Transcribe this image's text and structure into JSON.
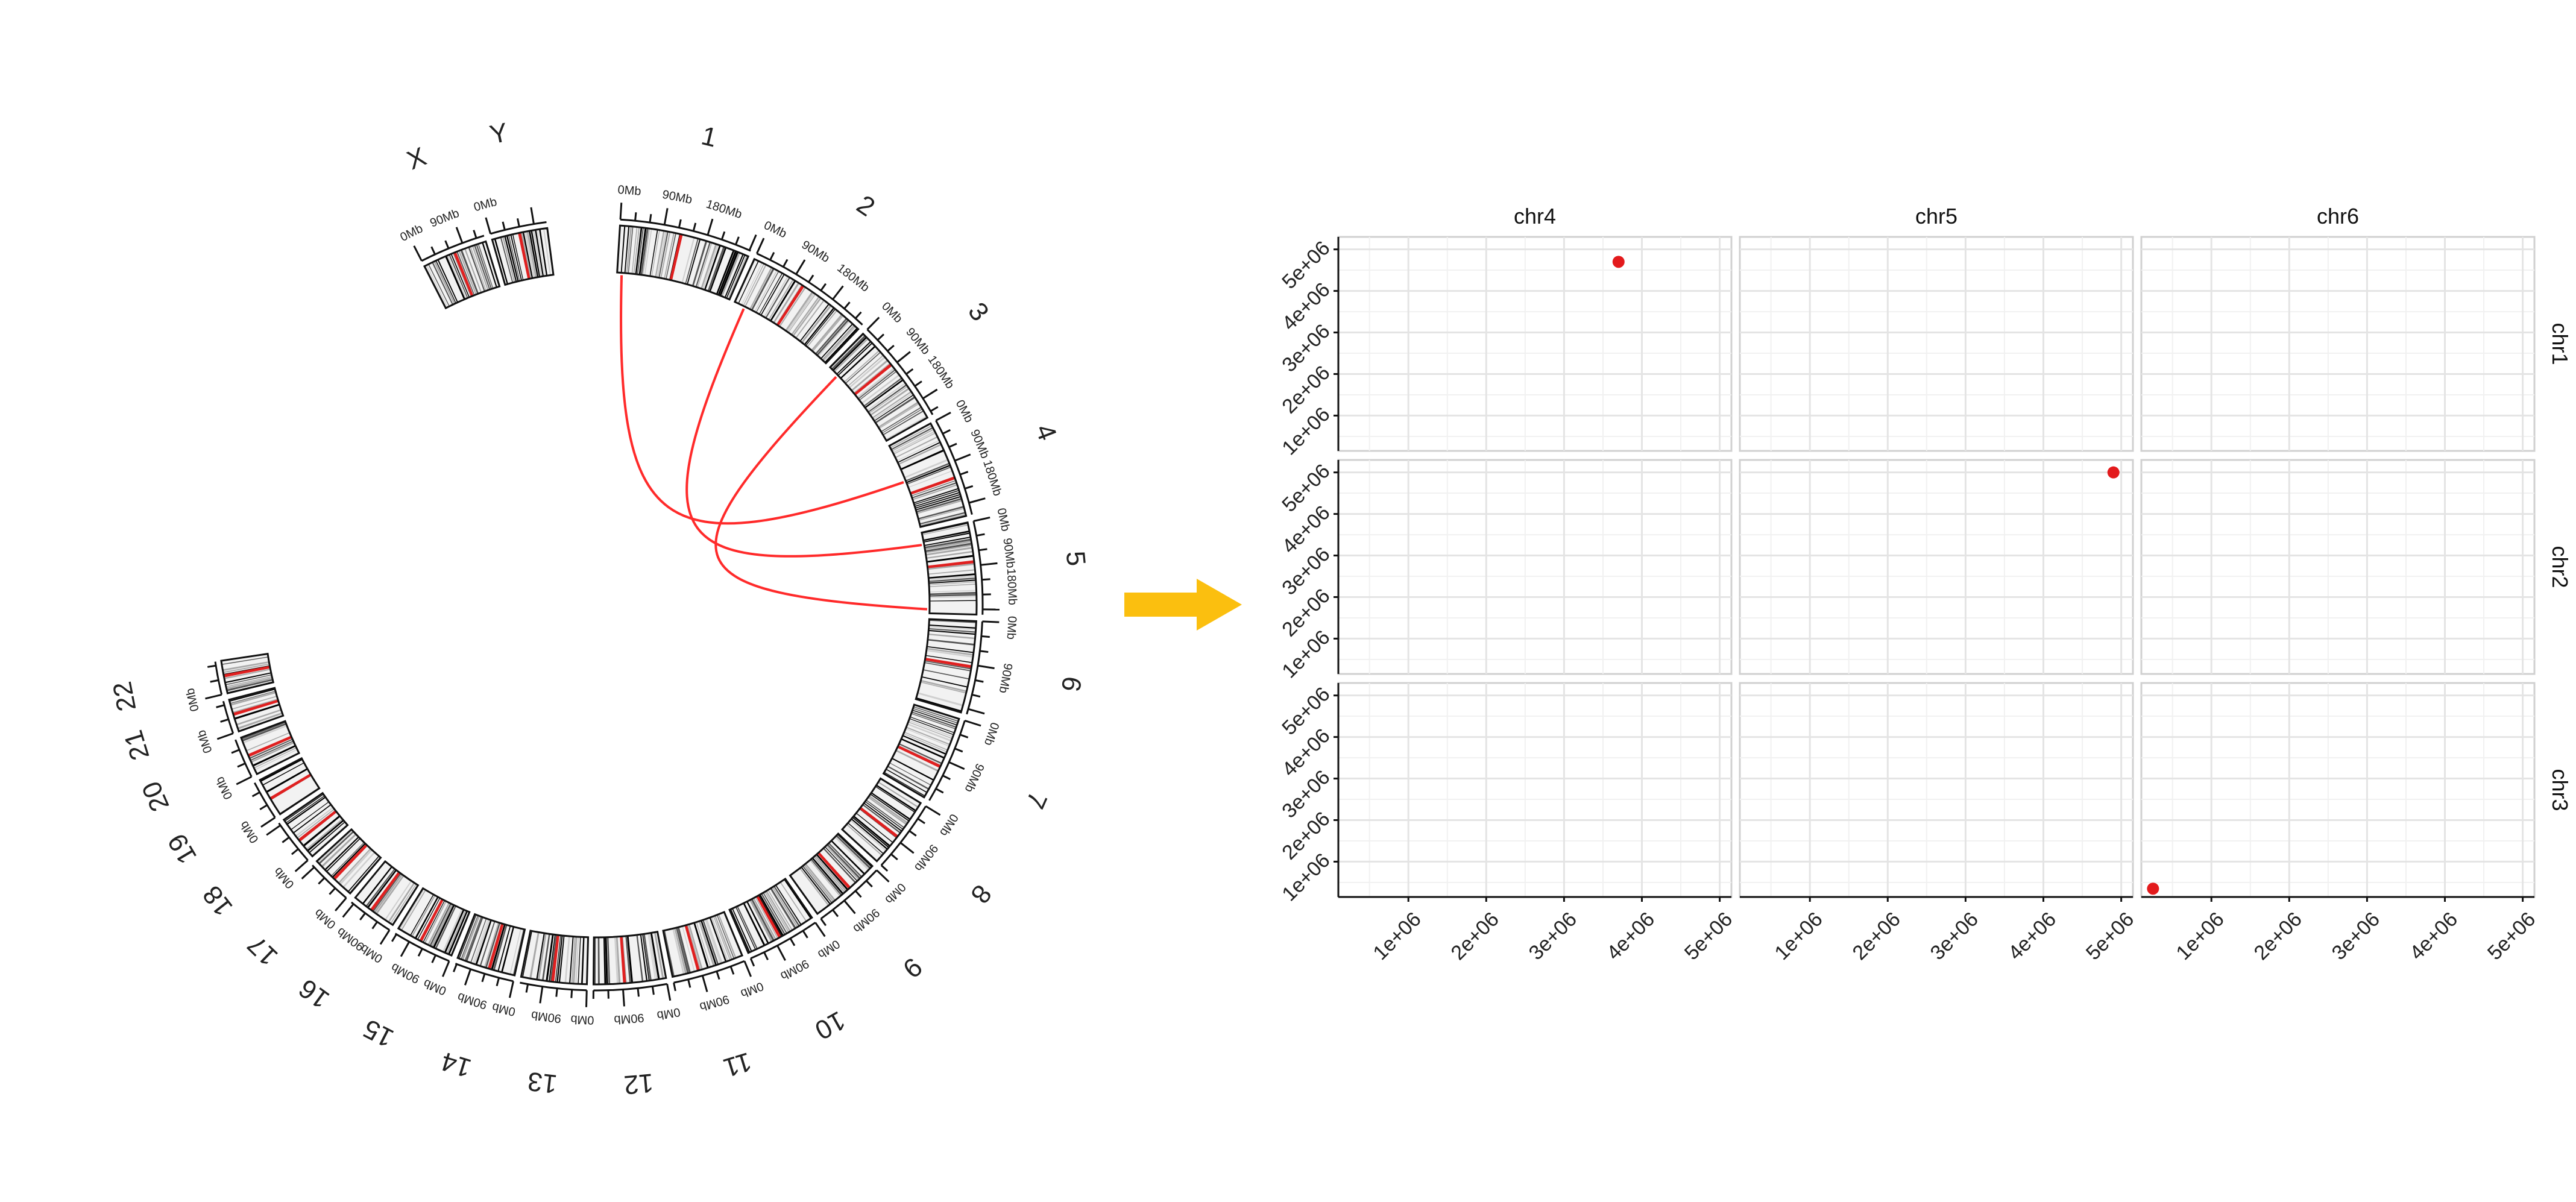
{
  "circos": {
    "chromosomes": [
      {
        "name": "1",
        "mb_labels": [
          "0Mb",
          "90Mb",
          "180Mb"
        ]
      },
      {
        "name": "2",
        "mb_labels": [
          "0Mb",
          "90Mb",
          "180Mb"
        ]
      },
      {
        "name": "3",
        "mb_labels": [
          "0Mb",
          "90Mb",
          "180Mb"
        ]
      },
      {
        "name": "4",
        "mb_labels": [
          "0Mb",
          "90Mb",
          "180Mb"
        ]
      },
      {
        "name": "5",
        "mb_labels": [
          "0Mb",
          "90Mb",
          "180Mb"
        ]
      },
      {
        "name": "6",
        "mb_labels": [
          "0Mb",
          "90Mb"
        ]
      },
      {
        "name": "7",
        "mb_labels": [
          "0Mb",
          "90Mb"
        ]
      },
      {
        "name": "8",
        "mb_labels": [
          "0Mb",
          "90Mb"
        ]
      },
      {
        "name": "9",
        "mb_labels": [
          "0Mb",
          "90Mb"
        ]
      },
      {
        "name": "10",
        "mb_labels": [
          "0Mb",
          "90Mb"
        ]
      },
      {
        "name": "11",
        "mb_labels": [
          "0Mb",
          "90Mb"
        ]
      },
      {
        "name": "12",
        "mb_labels": [
          "0Mb",
          "90Mb"
        ]
      },
      {
        "name": "13",
        "mb_labels": [
          "0Mb",
          "90Mb"
        ]
      },
      {
        "name": "14",
        "mb_labels": [
          "0Mb",
          "90Mb"
        ]
      },
      {
        "name": "15",
        "mb_labels": [
          "0Mb",
          "90Mb"
        ]
      },
      {
        "name": "16",
        "mb_labels": [
          "0Mb",
          "90Mb"
        ]
      },
      {
        "name": "17",
        "mb_labels": [
          "0Mb"
        ]
      },
      {
        "name": "18",
        "mb_labels": [
          "0Mb"
        ]
      },
      {
        "name": "19",
        "mb_labels": [
          "0Mb"
        ]
      },
      {
        "name": "20",
        "mb_labels": [
          "0Mb"
        ]
      },
      {
        "name": "21",
        "mb_labels": [
          "0Mb"
        ]
      },
      {
        "name": "22",
        "mb_labels": [
          "0Mb"
        ]
      },
      {
        "name": "X",
        "mb_labels": [
          "0Mb",
          "90Mb"
        ]
      },
      {
        "name": "Y",
        "mb_labels": [
          "0Mb"
        ]
      }
    ],
    "links": [
      {
        "from": "1",
        "from_frac": 0.04,
        "to": "4",
        "to_frac": 0.45
      },
      {
        "from": "2",
        "from_frac": 0.1,
        "to": "5",
        "to_frac": 0.15
      },
      {
        "from": "3",
        "from_frac": 0.12,
        "to": "5",
        "to_frac": 0.95
      }
    ],
    "link_color": "#ff2a2a"
  },
  "arrow": {
    "color": "#fbbf0f"
  },
  "facet": {
    "columns": [
      "chr4",
      "chr5",
      "chr6"
    ],
    "rows": [
      "chr1",
      "chr2",
      "chr3"
    ],
    "x_ticks": [
      "1e+06",
      "2e+06",
      "3e+06",
      "4e+06",
      "5e+06"
    ],
    "y_ticks": [
      "1e+06",
      "2e+06",
      "3e+06",
      "4e+06",
      "5e+06"
    ],
    "x_tick_values": [
      1000000,
      2000000,
      3000000,
      4000000,
      5000000
    ],
    "y_tick_values": [
      1000000,
      2000000,
      3000000,
      4000000,
      5000000
    ],
    "xlim": [
      100000,
      5150000
    ],
    "ylim": [
      150000,
      5300000
    ]
  },
  "chart_data": {
    "type": "scatter",
    "point_color": "#e31a1c",
    "points": [
      {
        "col": "chr4",
        "row": "chr1",
        "x": 3700000,
        "y": 4700000
      },
      {
        "col": "chr5",
        "row": "chr2",
        "x": 4900000,
        "y": 5000000
      },
      {
        "col": "chr6",
        "row": "chr3",
        "x": 250000,
        "y": 350000
      }
    ]
  }
}
